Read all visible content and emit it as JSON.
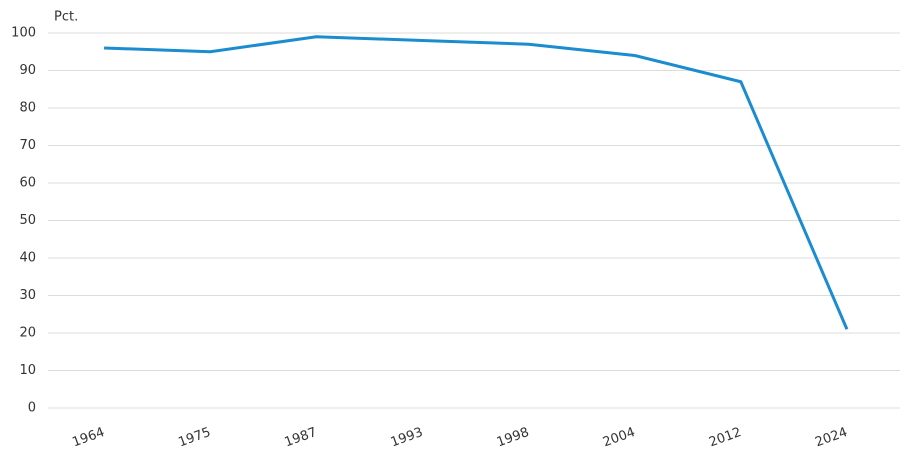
{
  "chart_data": {
    "type": "line",
    "y_label": "Pct.",
    "categories": [
      "1964",
      "1975",
      "1987",
      "1993",
      "1998",
      "2004",
      "2012",
      "2024"
    ],
    "series": [
      {
        "name": "Pct.",
        "color": "#1a8ccf",
        "values": [
          96,
          95,
          99,
          98,
          97,
          94,
          87,
          21
        ]
      }
    ],
    "ylim": [
      0,
      100
    ],
    "yticks": [
      0,
      10,
      20,
      30,
      40,
      50,
      60,
      70,
      80,
      90,
      100
    ],
    "grid": true
  }
}
